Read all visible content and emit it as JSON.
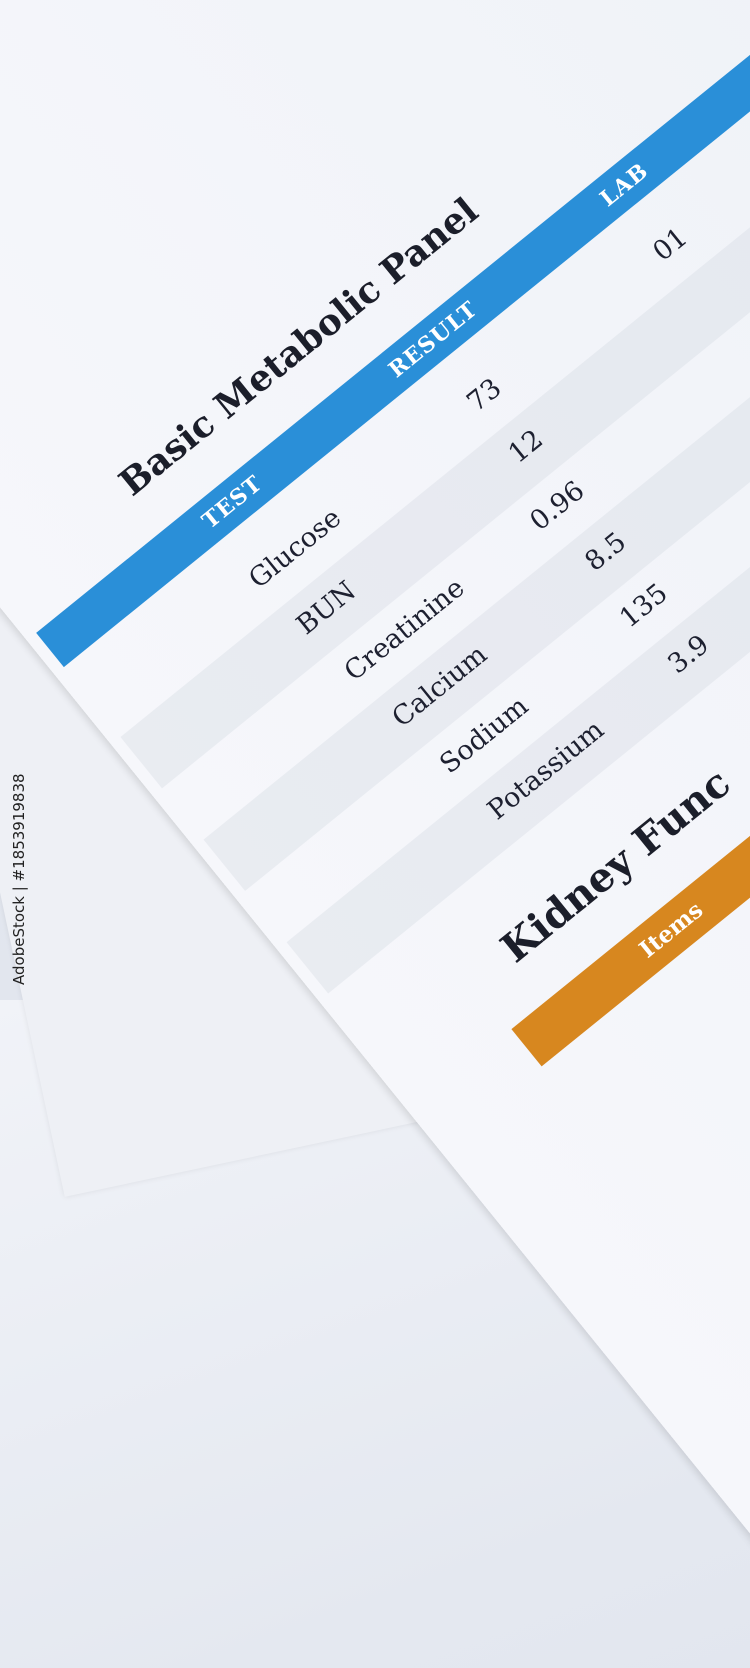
{
  "panel": {
    "title": "Basic Metabolic Panel",
    "header_color": "#2a8fd8",
    "columns": [
      "TEST",
      "RESULT",
      "LAB"
    ],
    "rows": [
      {
        "test": "Glucose",
        "result": "73",
        "lab": "01"
      },
      {
        "test": "BUN",
        "result": "12",
        "lab": ""
      },
      {
        "test": "Creatinine",
        "result": "0.96",
        "lab": ""
      },
      {
        "test": "Calcium",
        "result": "8.5",
        "lab": ""
      },
      {
        "test": "Sodium",
        "result": "135",
        "lab": ""
      },
      {
        "test": "Potassium",
        "result": "3.9",
        "lab": ""
      }
    ]
  },
  "next_section": {
    "title": "Kidney Func",
    "header_color": "#d7871f",
    "header_label": "Items"
  },
  "stock_id": "AdobeStock | #1853919838"
}
